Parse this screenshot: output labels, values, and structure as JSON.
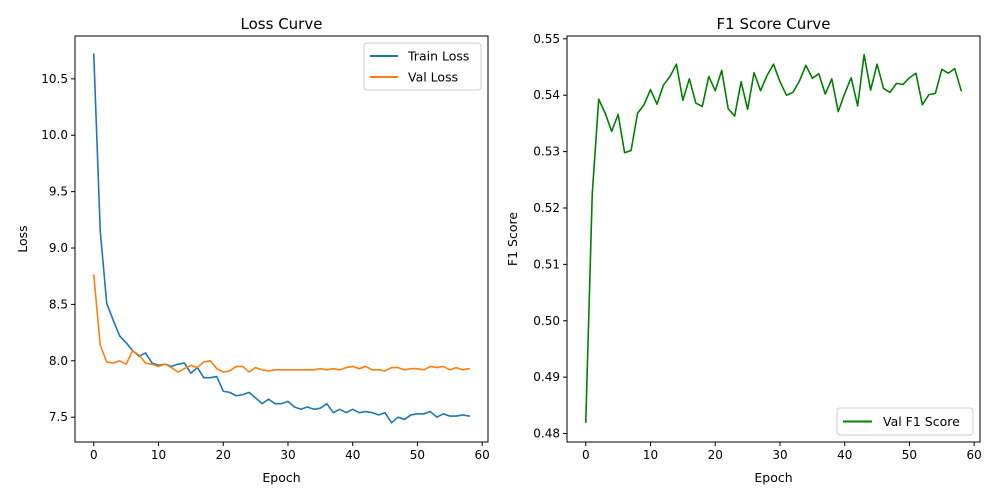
{
  "chart_data": [
    {
      "type": "line",
      "title": "Loss Curve",
      "xlabel": "Epoch",
      "ylabel": "Loss",
      "xlim": [
        -2.9,
        60.9
      ],
      "ylim": [
        7.28,
        10.88
      ],
      "xticks": [
        0,
        10,
        20,
        30,
        40,
        50,
        60
      ],
      "yticks": [
        7.5,
        8.0,
        8.5,
        9.0,
        9.5,
        10.0,
        10.5
      ],
      "ytick_labels": [
        "7.5",
        "8.0",
        "8.5",
        "9.0",
        "9.5",
        "10.0",
        "10.5"
      ],
      "grid": false,
      "legend_position": "top-right",
      "series": [
        {
          "name": "Train Loss",
          "color": "#1f77b4",
          "x": [
            0,
            1,
            2,
            3,
            4,
            5,
            6,
            7,
            8,
            9,
            10,
            11,
            12,
            13,
            14,
            15,
            16,
            17,
            18,
            19,
            20,
            21,
            22,
            23,
            24,
            25,
            26,
            27,
            28,
            29,
            30,
            31,
            32,
            33,
            34,
            35,
            36,
            37,
            38,
            39,
            40,
            41,
            42,
            43,
            44,
            45,
            46,
            47,
            48,
            49,
            50,
            51,
            52,
            53,
            54,
            55,
            56,
            57,
            58
          ],
          "values": [
            10.72,
            9.15,
            8.51,
            8.36,
            8.22,
            8.16,
            8.09,
            8.04,
            8.07,
            7.98,
            7.96,
            7.97,
            7.95,
            7.97,
            7.98,
            7.89,
            7.94,
            7.85,
            7.85,
            7.86,
            7.73,
            7.72,
            7.69,
            7.7,
            7.72,
            7.67,
            7.62,
            7.66,
            7.62,
            7.62,
            7.64,
            7.59,
            7.57,
            7.59,
            7.57,
            7.58,
            7.62,
            7.54,
            7.57,
            7.54,
            7.57,
            7.54,
            7.55,
            7.54,
            7.52,
            7.54,
            7.45,
            7.5,
            7.48,
            7.52,
            7.53,
            7.53,
            7.55,
            7.5,
            7.53,
            7.51,
            7.51,
            7.52,
            7.51
          ]
        },
        {
          "name": "Val Loss",
          "color": "#ff7f0e",
          "x": [
            0,
            1,
            2,
            3,
            4,
            5,
            6,
            7,
            8,
            9,
            10,
            11,
            12,
            13,
            14,
            15,
            16,
            17,
            18,
            19,
            20,
            21,
            22,
            23,
            24,
            25,
            26,
            27,
            28,
            29,
            30,
            31,
            32,
            33,
            34,
            35,
            36,
            37,
            38,
            39,
            40,
            41,
            42,
            43,
            44,
            45,
            46,
            47,
            48,
            49,
            50,
            51,
            52,
            53,
            54,
            55,
            56,
            57,
            58
          ],
          "values": [
            8.76,
            8.14,
            7.99,
            7.98,
            8.0,
            7.97,
            8.09,
            8.05,
            7.98,
            7.97,
            7.95,
            7.97,
            7.94,
            7.9,
            7.93,
            7.96,
            7.94,
            7.99,
            8.0,
            7.93,
            7.9,
            7.91,
            7.95,
            7.95,
            7.9,
            7.94,
            7.92,
            7.91,
            7.92,
            7.92,
            7.92,
            7.92,
            7.92,
            7.92,
            7.92,
            7.93,
            7.92,
            7.93,
            7.92,
            7.94,
            7.95,
            7.93,
            7.95,
            7.92,
            7.92,
            7.91,
            7.94,
            7.94,
            7.92,
            7.93,
            7.93,
            7.92,
            7.95,
            7.94,
            7.95,
            7.92,
            7.94,
            7.92,
            7.93
          ]
        }
      ]
    },
    {
      "type": "line",
      "title": "F1 Score Curve",
      "xlabel": "Epoch",
      "ylabel": "F1 Score",
      "xlim": [
        -2.9,
        60.9
      ],
      "ylim": [
        0.4785,
        0.5505
      ],
      "xticks": [
        0,
        10,
        20,
        30,
        40,
        50,
        60
      ],
      "yticks": [
        0.48,
        0.49,
        0.5,
        0.51,
        0.52,
        0.53,
        0.54,
        0.55
      ],
      "ytick_labels": [
        "0.48",
        "0.49",
        "0.50",
        "0.51",
        "0.52",
        "0.53",
        "0.54",
        "0.55"
      ],
      "grid": false,
      "legend_position": "bottom-right",
      "series": [
        {
          "name": "Val F1 Score",
          "color": "#008000",
          "x": [
            0,
            1,
            2,
            3,
            4,
            5,
            6,
            7,
            8,
            9,
            10,
            11,
            12,
            13,
            14,
            15,
            16,
            17,
            18,
            19,
            20,
            21,
            22,
            23,
            24,
            25,
            26,
            27,
            28,
            29,
            30,
            31,
            32,
            33,
            34,
            35,
            36,
            37,
            38,
            39,
            40,
            41,
            42,
            43,
            44,
            45,
            46,
            47,
            48,
            49,
            50,
            51,
            52,
            53,
            54,
            55,
            56,
            57,
            58
          ],
          "values": [
            0.482,
            0.5225,
            0.5393,
            0.5368,
            0.5336,
            0.5366,
            0.5298,
            0.5302,
            0.5368,
            0.5383,
            0.541,
            0.5384,
            0.5418,
            0.5433,
            0.5455,
            0.5391,
            0.5429,
            0.5386,
            0.538,
            0.5433,
            0.5408,
            0.5444,
            0.5376,
            0.5363,
            0.5424,
            0.5375,
            0.544,
            0.5408,
            0.5435,
            0.5455,
            0.5424,
            0.54,
            0.5405,
            0.5425,
            0.5453,
            0.543,
            0.5438,
            0.5402,
            0.5429,
            0.5371,
            0.5403,
            0.5431,
            0.5381,
            0.5472,
            0.5409,
            0.5455,
            0.5412,
            0.5405,
            0.5421,
            0.5419,
            0.5431,
            0.5439,
            0.5383,
            0.5401,
            0.5403,
            0.5446,
            0.5439,
            0.5447,
            0.5408
          ]
        }
      ]
    }
  ]
}
